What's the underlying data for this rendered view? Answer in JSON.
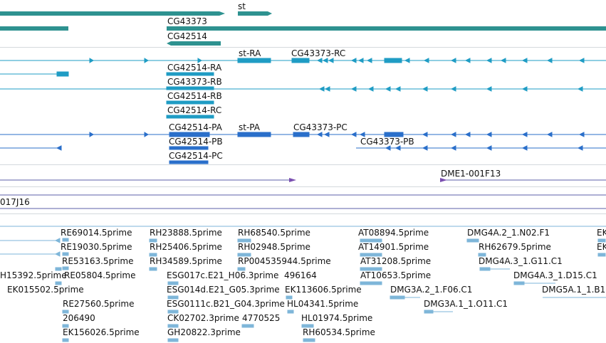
{
  "colors": {
    "gene": "#2e9290",
    "transcript_rna": "#1f9cc4",
    "transcript_protein": "#2a6fca",
    "clone": "#7a4fb0",
    "clone_line": "#5c5fa8",
    "est": "#7eb6d9"
  },
  "tracks": {
    "genes": {
      "st": "st",
      "cg43373": "CG43373",
      "cg42514": "CG42514"
    },
    "transcripts": {
      "st_ra": "st-RA",
      "cg43373_rc": "CG43373-RC",
      "cg42514_ra": "CG42514-RA",
      "cg43373_rb": "CG43373-RB",
      "cg42514_rb": "CG42514-RB",
      "cg42514_rc": "CG42514-RC"
    },
    "proteins": {
      "cg42514_pa": "CG42514-PA",
      "st_pa": "st-PA",
      "cg43373_pc": "CG43373-PC",
      "cg43373_pb": "CG43373-PB",
      "cg42514_pb": "CG42514-PB",
      "cg42514_pc": "CG42514-PC"
    },
    "clones": {
      "dme1": "DME1-001F13",
      "j16": "017J16"
    },
    "ests": [
      "RE69014.5prime",
      "RH23888.5prime",
      "RH68540.5prime",
      "AT08894.5prime",
      "DMG4A.2_1.N02.F1",
      "EK",
      "RE19030.5prime",
      "RH25406.5prime",
      "RH02948.5prime",
      "AT14901.5prime",
      "RH62679.5prime",
      "EK",
      "RE53163.5prime",
      "RH34589.5prime",
      "RP004535944.5prime",
      "AT31208.5prime",
      "DMG4A.3_1.G11.C1",
      "H15392.5prime",
      "RE05804.5prime",
      "ESG017c.E21_H06.3prime",
      "496164",
      "AT10653.5prime",
      "DMG4A.3_1.D15.C1",
      "EK015502.5prime",
      "ESG014d.E21_G05.3prime",
      "EK113606.5prime",
      "DMG3A.2_1.F06.C1",
      "DMG5A.1_1.B1",
      "RE27560.5prime",
      "ESG0111c.B21_G04.3prime",
      "HL04341.5prime",
      "DMG3A.1_1.O11.C1",
      "206490",
      "CK02702.3prime",
      "4770525",
      "HL01974.5prime",
      "EK156026.5prime",
      "GH20822.3prime",
      "RH60534.5prime"
    ]
  }
}
